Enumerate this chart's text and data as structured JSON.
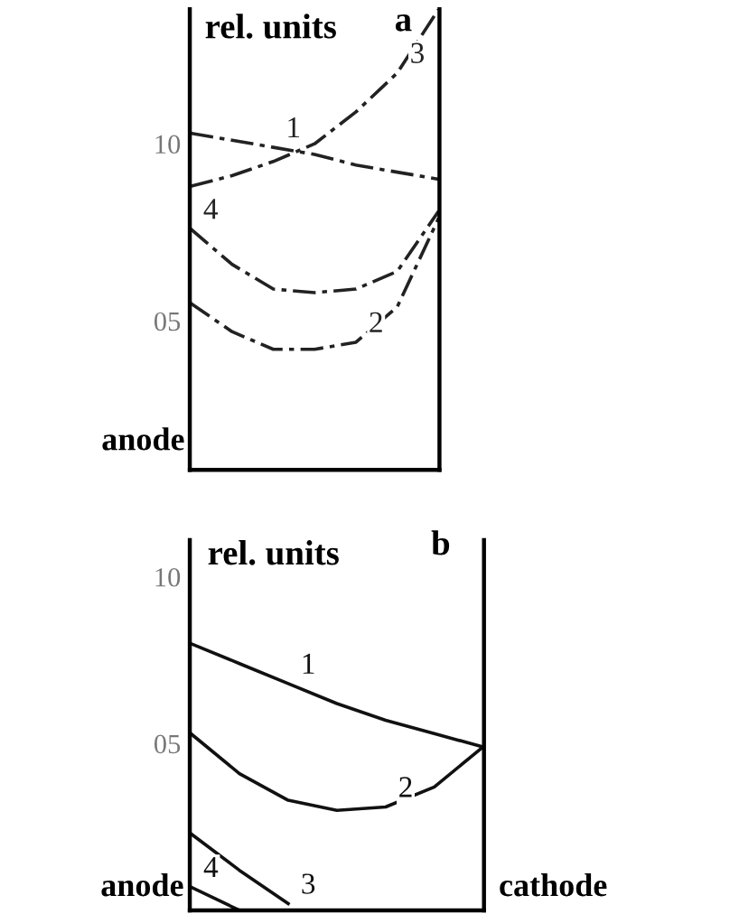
{
  "chart_data": [
    {
      "type": "line",
      "title": "a",
      "ylabel": "rel. units",
      "categories": [
        null,
        null,
        null,
        null,
        null,
        null,
        null
      ],
      "line_style": "dashed",
      "marker": "none",
      "grid": false,
      "legend": false,
      "tick_labels": "y",
      "ylim": [
        0.8,
        13.8
      ],
      "yticks": [
        {
          "value": 5,
          "label": "05"
        },
        10
      ],
      "series": [
        {
          "name": "1",
          "color": "#222222",
          "values": [
            10.3,
            10.1,
            9.9,
            9.7,
            9.4,
            9.2,
            9.0
          ]
        },
        {
          "name": "2",
          "color": "#222222",
          "values": [
            5.5,
            4.7,
            4.2,
            4.2,
            4.4,
            5.4,
            7.9
          ]
        },
        {
          "name": "3",
          "color": "#222222",
          "values": [
            8.8,
            9.1,
            9.5,
            10.0,
            10.9,
            12.0,
            13.8
          ]
        },
        {
          "name": "4",
          "color": "#222222",
          "values": [
            7.6,
            6.6,
            5.9,
            5.8,
            5.9,
            6.4,
            8.1
          ]
        }
      ],
      "annotations": [
        "anode"
      ]
    },
    {
      "type": "line",
      "title": "b",
      "ylabel": "rel. units",
      "categories": [
        null,
        null,
        null,
        null,
        null,
        null,
        null
      ],
      "line_style": "solid",
      "marker": "none",
      "grid": false,
      "legend": false,
      "tick_labels": "y",
      "ylim": [
        0,
        11.1
      ],
      "yticks": [
        {
          "value": 5,
          "label": "05"
        },
        10
      ],
      "series": [
        {
          "name": "1",
          "color": "#111111",
          "values": [
            8.0,
            7.4,
            6.8,
            6.2,
            5.7,
            5.3,
            4.9
          ]
        },
        {
          "name": "2",
          "color": "#111111",
          "values": [
            5.3,
            4.1,
            3.3,
            3.0,
            3.1,
            3.7,
            4.9
          ]
        },
        {
          "name": "3",
          "color": "#111111",
          "values": [
            2.3,
            1.2,
            0.2,
            null,
            null,
            null,
            null
          ]
        },
        {
          "name": "4",
          "color": "#111111",
          "values": [
            0.7,
            0.0,
            null,
            null,
            null,
            null,
            null
          ]
        }
      ],
      "annotations": [
        "anode",
        "cathode"
      ]
    }
  ]
}
